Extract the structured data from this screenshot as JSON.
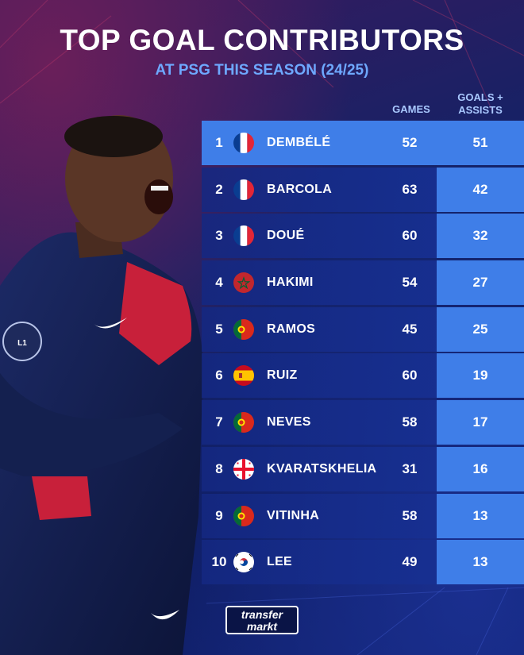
{
  "header": {
    "title": "TOP GOAL CONTRIBUTORS",
    "subtitle": "AT PSG THIS SEASON (24/25)"
  },
  "columns": {
    "games": "GAMES",
    "ga_line1": "GOALS +",
    "ga_line2": "ASSISTS"
  },
  "rows": [
    {
      "rank": "1",
      "flag": "france-flag-icon",
      "name": "DEMBÉLÉ",
      "games": "52",
      "ga": "51"
    },
    {
      "rank": "2",
      "flag": "france-flag-icon",
      "name": "BARCOLA",
      "games": "63",
      "ga": "42"
    },
    {
      "rank": "3",
      "flag": "france-flag-icon",
      "name": "DOUÉ",
      "games": "60",
      "ga": "32"
    },
    {
      "rank": "4",
      "flag": "morocco-flag-icon",
      "name": "HAKIMI",
      "games": "54",
      "ga": "27"
    },
    {
      "rank": "5",
      "flag": "portugal-flag-icon",
      "name": "RAMOS",
      "games": "45",
      "ga": "25"
    },
    {
      "rank": "6",
      "flag": "spain-flag-icon",
      "name": "RUIZ",
      "games": "60",
      "ga": "19"
    },
    {
      "rank": "7",
      "flag": "portugal-flag-icon",
      "name": "NEVES",
      "games": "58",
      "ga": "17"
    },
    {
      "rank": "8",
      "flag": "georgia-flag-icon",
      "name": "KVARATSKHELIA",
      "games": "31",
      "ga": "16"
    },
    {
      "rank": "9",
      "flag": "portugal-flag-icon",
      "name": "VITINHA",
      "games": "58",
      "ga": "13"
    },
    {
      "rank": "10",
      "flag": "south-korea-flag-icon",
      "name": "LEE",
      "games": "49",
      "ga": "13"
    }
  ],
  "logo": {
    "line1": "transfer",
    "line2": "markt"
  },
  "colors": {
    "accent": "#3f7ee8",
    "title": "#ffffff",
    "subtitle": "#6ea8ff",
    "background": "#142266"
  }
}
